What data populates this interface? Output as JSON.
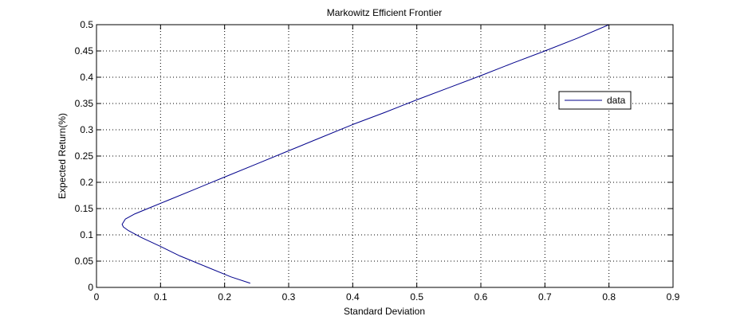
{
  "chart_data": {
    "type": "line",
    "title": "Markowitz Efficient Frontier",
    "xlabel": "Standard Deviation",
    "ylabel": "Expected Return(%)",
    "xlim": [
      0,
      0.9
    ],
    "ylim": [
      0,
      0.5
    ],
    "xticks": [
      "0",
      "0.1",
      "0.2",
      "0.3",
      "0.4",
      "0.5",
      "0.6",
      "0.7",
      "0.8",
      "0.9"
    ],
    "yticks": [
      "0",
      "0.05",
      "0.1",
      "0.15",
      "0.2",
      "0.25",
      "0.3",
      "0.35",
      "0.4",
      "0.45",
      "0.5"
    ],
    "grid": true,
    "legend_position": "top-right",
    "series": [
      {
        "name": "data",
        "color": "#00008B",
        "x": [
          0.24,
          0.21,
          0.17,
          0.13,
          0.1,
          0.07,
          0.05,
          0.042,
          0.04,
          0.045,
          0.06,
          0.08,
          0.11,
          0.15,
          0.2,
          0.25,
          0.3,
          0.35,
          0.4,
          0.45,
          0.5,
          0.55,
          0.6,
          0.65,
          0.7,
          0.75,
          0.8
        ],
        "y": [
          0.008,
          0.02,
          0.04,
          0.06,
          0.078,
          0.095,
          0.108,
          0.115,
          0.12,
          0.13,
          0.14,
          0.15,
          0.165,
          0.185,
          0.21,
          0.235,
          0.26,
          0.285,
          0.31,
          0.333,
          0.357,
          0.38,
          0.403,
          0.427,
          0.45,
          0.474,
          0.5
        ]
      }
    ]
  }
}
